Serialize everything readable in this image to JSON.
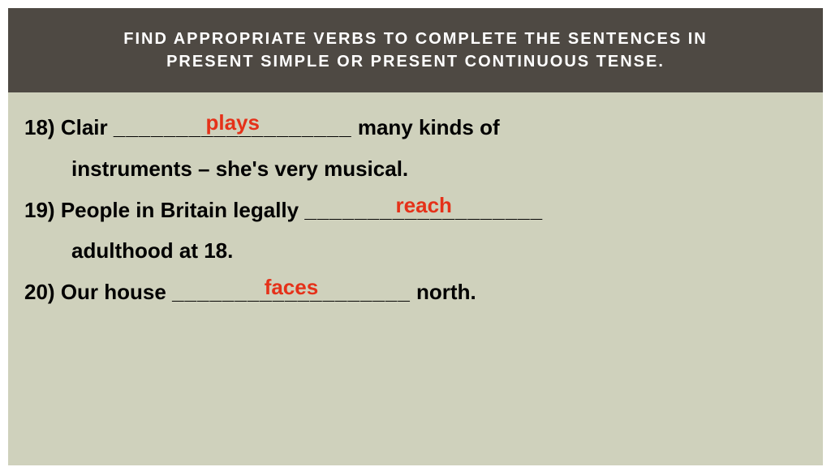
{
  "header": {
    "title_line1": "FIND APPROPRIATE VERBS TO COMPLETE THE SENTENCES IN",
    "title_line2": "PRESENT SIMPLE OR PRESENT CONTINUOUS TENSE."
  },
  "colors": {
    "header_bg": "#4e4943",
    "header_text": "#ffffff",
    "content_bg": "#cfd1bc",
    "question_text": "#000000",
    "answer_text": "#e53119"
  },
  "typography": {
    "header_fontsize": 20,
    "question_fontsize": 26,
    "answer_fontsize": 26,
    "header_letter_spacing": 2
  },
  "questions": [
    {
      "number": "18)",
      "before": "Clair",
      "blank": "___________________",
      "answer": "plays",
      "after_line1": "many kinds of",
      "after_line2": "instruments – she's very musical."
    },
    {
      "number": "19)",
      "before": "People in Britain legally",
      "blank": "___________________",
      "answer": "reach",
      "after_line1": "",
      "after_line2": "adulthood at 18."
    },
    {
      "number": "20)",
      "before": "Our house",
      "blank": "___________________",
      "answer": "faces",
      "after_line1": "north.",
      "after_line2": ""
    }
  ]
}
